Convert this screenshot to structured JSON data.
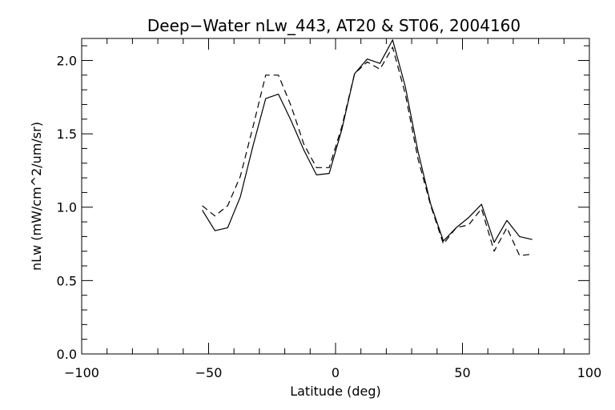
{
  "chart_data": {
    "type": "line",
    "title": "Deep−Water nLw_443, AT20 & ST06, 2004160",
    "xlabel": "Latitude (deg)",
    "ylabel": "nLw (mW/cm^2/um/sr)",
    "xlim": [
      -100,
      100
    ],
    "ylim": [
      0.0,
      2.15
    ],
    "x_ticks": [
      -100,
      -50,
      0,
      50,
      100
    ],
    "x_tick_labels": [
      "−100",
      "−50",
      "0",
      "50",
      "100"
    ],
    "y_ticks": [
      0.0,
      0.5,
      1.0,
      1.5,
      2.0
    ],
    "y_tick_labels": [
      "0.0",
      "0.5",
      "1.0",
      "1.5",
      "2.0"
    ],
    "grid": false,
    "legend": "none",
    "series": [
      {
        "style": "solid",
        "color": "#000000",
        "x": [
          -52.5,
          -47.5,
          -42.5,
          -37.5,
          -32.5,
          -27.5,
          -22.5,
          -17.5,
          -12.5,
          -7.5,
          -2.5,
          2.5,
          7.5,
          12.5,
          17.5,
          22.5,
          27.5,
          32.5,
          37.5,
          42.5,
          47.5,
          52.5,
          57.5,
          62.5,
          67.5,
          72.5,
          77.5
        ],
        "y": [
          0.98,
          0.84,
          0.86,
          1.07,
          1.42,
          1.74,
          1.77,
          1.59,
          1.39,
          1.22,
          1.23,
          1.53,
          1.91,
          2.01,
          1.98,
          2.14,
          1.82,
          1.38,
          1.02,
          0.77,
          0.86,
          0.93,
          1.02,
          0.76,
          0.91,
          0.8,
          0.78
        ]
      },
      {
        "style": "dashed",
        "color": "#000000",
        "x": [
          -52.5,
          -47.5,
          -42.5,
          -37.5,
          -32.5,
          -27.5,
          -22.5,
          -17.5,
          -12.5,
          -7.5,
          -2.5,
          2.5,
          7.5,
          12.5,
          17.5,
          22.5,
          27.5,
          32.5,
          37.5,
          42.5,
          47.5,
          52.5,
          57.5,
          62.5,
          67.5,
          72.5,
          77.5
        ],
        "y": [
          1.01,
          0.94,
          1.01,
          1.21,
          1.55,
          1.9,
          1.9,
          1.69,
          1.43,
          1.27,
          1.27,
          1.55,
          1.91,
          1.99,
          1.94,
          2.09,
          1.77,
          1.33,
          1.01,
          0.75,
          0.86,
          0.88,
          0.99,
          0.7,
          0.86,
          0.67,
          0.68
        ]
      }
    ]
  }
}
